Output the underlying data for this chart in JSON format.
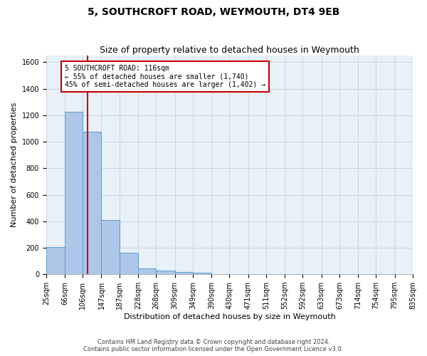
{
  "title": "5, SOUTHCROFT ROAD, WEYMOUTH, DT4 9EB",
  "subtitle": "Size of property relative to detached houses in Weymouth",
  "xlabel": "Distribution of detached houses by size in Weymouth",
  "ylabel": "Number of detached properties",
  "bin_edges": [
    25,
    66,
    106,
    147,
    187,
    228,
    268,
    309,
    349,
    390,
    430,
    471,
    511,
    552,
    592,
    633,
    673,
    714,
    754,
    795,
    835
  ],
  "bar_heights": [
    205,
    1225,
    1075,
    410,
    160,
    45,
    27,
    18,
    13,
    0,
    0,
    0,
    0,
    0,
    0,
    0,
    0,
    0,
    0,
    0
  ],
  "bar_color": "#aec6e8",
  "bar_edge_color": "#5a9fd4",
  "property_size": 116,
  "red_line_color": "#cc0000",
  "annotation_text_line1": "5 SOUTHCROFT ROAD: 116sqm",
  "annotation_text_line2": "← 55% of detached houses are smaller (1,740)",
  "annotation_text_line3": "45% of semi-detached houses are larger (1,402) →",
  "annotation_box_color": "#cc0000",
  "ylim": [
    0,
    1650
  ],
  "yticks": [
    0,
    200,
    400,
    600,
    800,
    1000,
    1200,
    1400,
    1600
  ],
  "grid_color": "#c8d8e8",
  "background_color": "#e8f0f8",
  "footer_line1": "Contains HM Land Registry data © Crown copyright and database right 2024.",
  "footer_line2": "Contains public sector information licensed under the Open Government Licence v3.0.",
  "title_fontsize": 10,
  "subtitle_fontsize": 9,
  "axis_label_fontsize": 8,
  "tick_fontsize": 7,
  "annotation_fontsize": 7,
  "footer_fontsize": 6
}
